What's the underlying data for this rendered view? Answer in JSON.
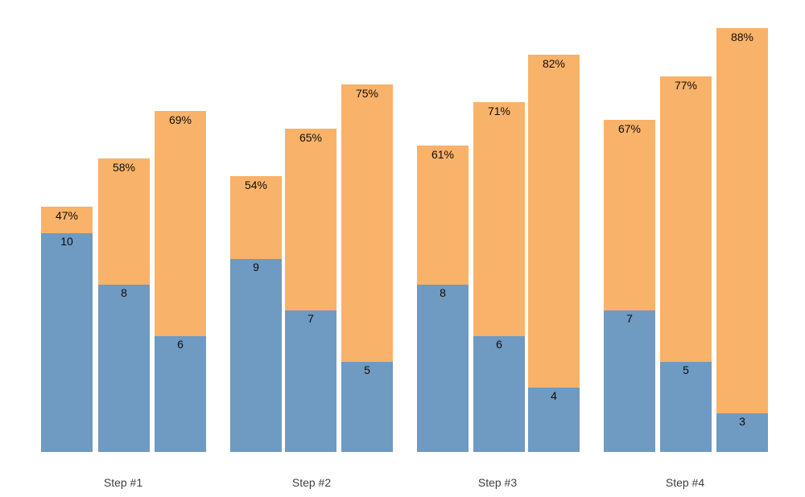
{
  "chart_data": {
    "type": "bar",
    "variant": "grouped-stacked-funnel",
    "title": "",
    "xlabel": "",
    "ylabel": "",
    "grid": false,
    "legend": null,
    "background": "#ffffff",
    "categories": [
      "Step #1",
      "Step #2",
      "Step #3",
      "Step #4"
    ],
    "bars_per_category": 3,
    "encoding": "Each bar: total height encodes the percentage label shown at the top of the orange bar; the blue bottom segment height encodes the count label.",
    "series": [
      {
        "name": "count-segment",
        "color": "#6f9ac1",
        "values": [
          [
            10,
            8,
            6
          ],
          [
            9,
            7,
            5
          ],
          [
            8,
            6,
            4
          ],
          [
            7,
            5,
            3
          ]
        ]
      },
      {
        "name": "percent-total",
        "color": "#f9b269",
        "values": [
          [
            47,
            58,
            69
          ],
          [
            54,
            65,
            75
          ],
          [
            61,
            71,
            82
          ],
          [
            67,
            77,
            88
          ]
        ],
        "labels": [
          [
            "47%",
            "58%",
            "69%"
          ],
          [
            "54%",
            "65%",
            "75%"
          ],
          [
            "61%",
            "71%",
            "82%"
          ],
          [
            "67%",
            "77%",
            "88%"
          ]
        ]
      }
    ],
    "value_label_color": "#0d0d0d",
    "axis_tick_label_color": "#3f3f3f"
  }
}
